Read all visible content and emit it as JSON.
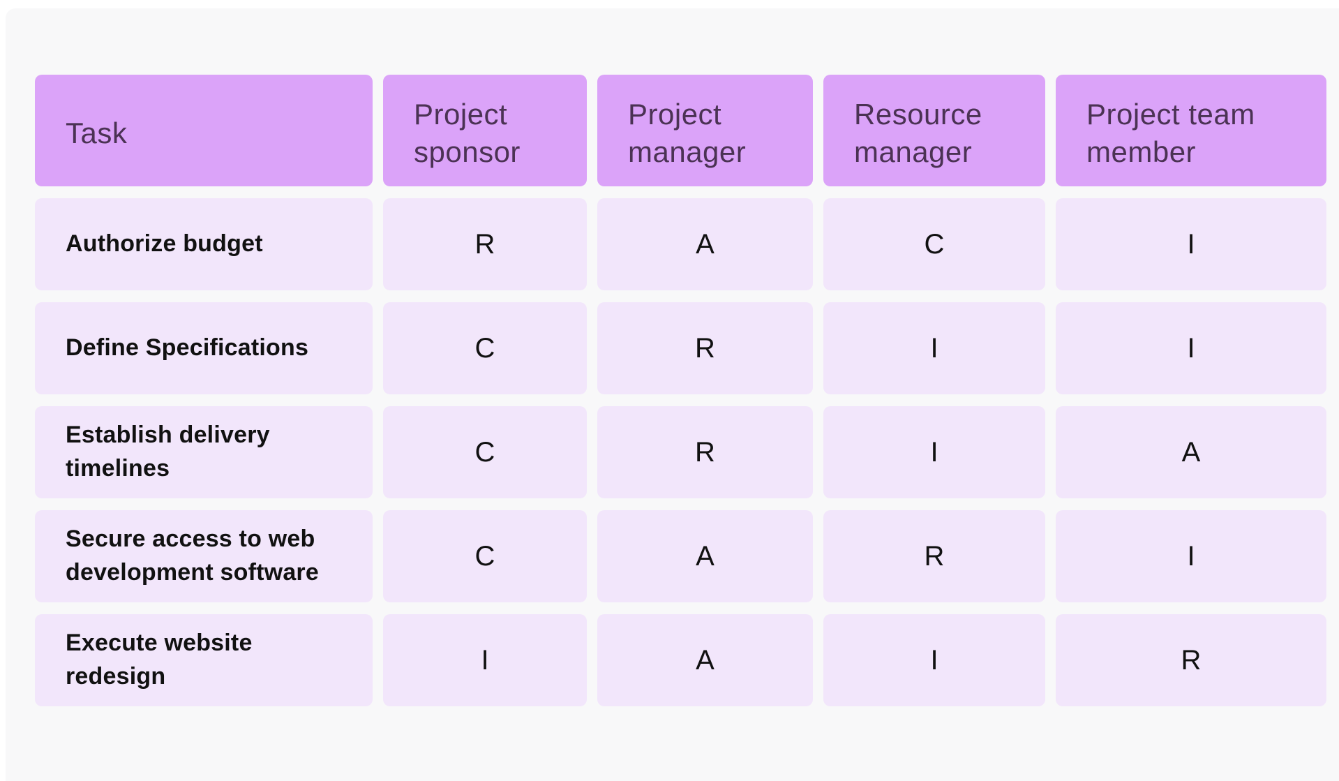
{
  "chart_data": {
    "type": "table",
    "description": "RACI responsibility assignment matrix",
    "columns": [
      "Task",
      "Project sponsor",
      "Project manager",
      "Resource manager",
      "Project team member"
    ],
    "rows": [
      {
        "task": "Authorize budget",
        "values": [
          "R",
          "A",
          "C",
          "I"
        ]
      },
      {
        "task": "Define Specifications",
        "values": [
          "C",
          "R",
          "I",
          "I"
        ]
      },
      {
        "task": "Establish delivery timelines",
        "values": [
          "C",
          "R",
          "I",
          "A"
        ]
      },
      {
        "task": "Secure access to web development software",
        "values": [
          "C",
          "A",
          "R",
          "I"
        ]
      },
      {
        "task": "Execute website redesign",
        "values": [
          "I",
          "A",
          "I",
          "R"
        ]
      }
    ],
    "colors": {
      "page_bg": "#f8f8f9",
      "header_bg": "#dba3f9",
      "header_text": "#4b3254",
      "cell_bg": "#f2e6fb",
      "cell_text": "#111111"
    },
    "layout": {
      "grid": "off",
      "legend": "none"
    }
  }
}
